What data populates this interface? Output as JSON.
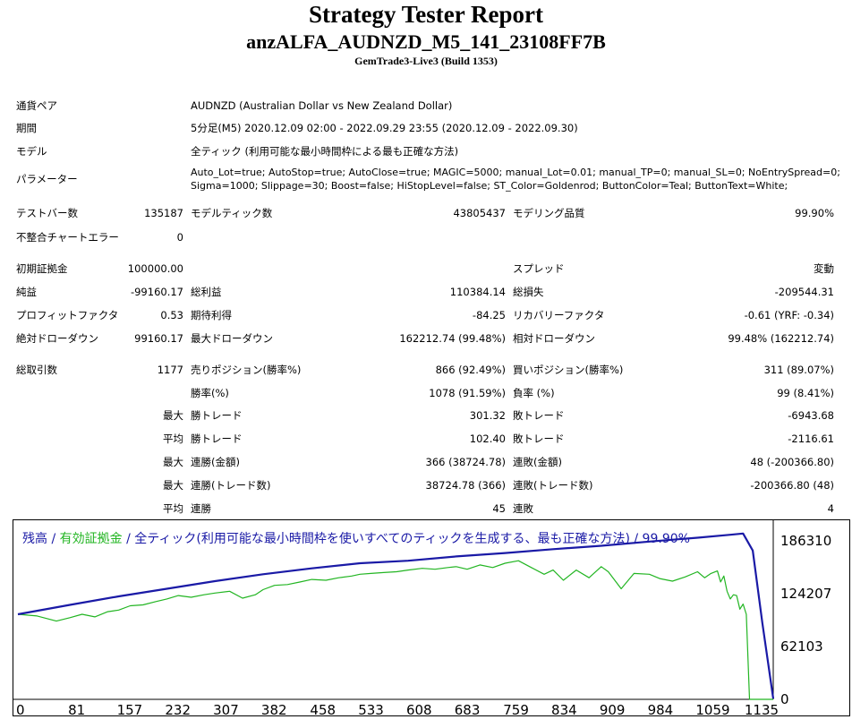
{
  "header": {
    "title": "Strategy Tester Report",
    "ea_name": "anzALFA_AUDNZD_M5_141_23108FF7B",
    "server": "GemTrade3-Live3 (Build 1353)"
  },
  "settings": {
    "symbol_label": "通貨ペア",
    "symbol_value": "AUDNZD (Australian Dollar vs New Zealand Dollar)",
    "period_label": "期間",
    "period_value": "5分足(M5) 2020.12.09 02:00 - 2022.09.29 23:55 (2020.12.09 - 2022.09.30)",
    "model_label": "モデル",
    "model_value": "全ティック (利用可能な最小時間枠による最も正確な方法)",
    "params_label": "パラメーター",
    "params_line1": "Auto_Lot=true; AutoStop=true; AutoClose=true; MAGIC=5000; manual_Lot=0.01; manual_TP=0; manual_SL=0; NoEntrySpread=0;",
    "params_line2": "Sigma=1000; Slippage=30; Boost=false; HiStopLevel=false; ST_Color=Goldenrod; ButtonColor=Teal; ButtonText=White;"
  },
  "test": {
    "bars_label": "テストバー数",
    "bars_value": "135187",
    "ticks_label": "モデルティック数",
    "ticks_value": "43805437",
    "quality_label": "モデリング品質",
    "quality_value": "99.90%",
    "mismatch_label": "不整合チャートエラー",
    "mismatch_value": "0"
  },
  "results": {
    "deposit_label": "初期証拠金",
    "deposit_value": "100000.00",
    "spread_label": "スプレッド",
    "spread_value": "変動",
    "net_label": "純益",
    "net_value": "-99160.17",
    "gross_profit_label": "総利益",
    "gross_profit_value": "110384.14",
    "gross_loss_label": "総損失",
    "gross_loss_value": "-209544.31",
    "pf_label": "プロフィットファクタ",
    "pf_value": "0.53",
    "expected_label": "期待利得",
    "expected_value": "-84.25",
    "recovery_label": "リカバリーファクタ",
    "recovery_value": "-0.61 (YRF: -0.34)",
    "abs_dd_label": "絶対ドローダウン",
    "abs_dd_value": "99160.17",
    "max_dd_label": "最大ドローダウン",
    "max_dd_value": "162212.74 (99.48%)",
    "rel_dd_label": "相対ドローダウン",
    "rel_dd_value": "99.48% (162212.74)"
  },
  "trades": {
    "total_label": "総取引数",
    "total_value": "1177",
    "short_label": "売りポジション(勝率%)",
    "short_value": "866 (92.49%)",
    "long_label": "買いポジション(勝率%)",
    "long_value": "311 (89.07%)",
    "win_label": "勝率(%)",
    "win_value": "1078 (91.59%)",
    "loss_label": "負率 (%)",
    "loss_value": "99 (8.41%)",
    "max_word": "最大",
    "avg_word": "平均",
    "largest_win_label": "勝トレード",
    "largest_win_value": "301.32",
    "largest_loss_label": "敗トレード",
    "largest_loss_value": "-6943.68",
    "avg_win_label": "勝トレード",
    "avg_win_value": "102.40",
    "avg_loss_label": "敗トレード",
    "avg_loss_value": "-2116.61",
    "max_cons_wins_money_label": "連勝(金額)",
    "max_cons_wins_money_value": "366 (38724.78)",
    "max_cons_losses_money_label": "連敗(金額)",
    "max_cons_losses_money_value": "48 (-200366.80)",
    "max_cons_wins_count_label": "連勝(トレード数)",
    "max_cons_wins_count_value": "38724.78 (366)",
    "max_cons_losses_count_label": "連敗(トレード数)",
    "max_cons_losses_count_value": "-200366.80 (48)",
    "avg_cons_wins_label": "連勝",
    "avg_cons_wins_value": "45",
    "avg_cons_losses_label": "連敗",
    "avg_cons_losses_value": "4"
  },
  "chart_data": {
    "type": "line",
    "legend_balance": "残高",
    "legend_sep1": " / ",
    "legend_equity": "有効証拠金",
    "legend_rest": " / 全ティック(利用可能な最小時間枠を使いすべてのティックを生成する、最も正確な方法) / 99.90%",
    "colors": {
      "balance": "#1a1aa6",
      "equity": "#22b522",
      "legend_text": "#1a1aa6"
    },
    "ylim": [
      0,
      200000
    ],
    "y_ticks": [
      0,
      62103,
      124207,
      186310
    ],
    "x_ticks": [
      0,
      81,
      157,
      232,
      307,
      382,
      458,
      533,
      608,
      683,
      759,
      834,
      909,
      984,
      1059,
      1135
    ],
    "xlim": [
      0,
      1177
    ],
    "series": [
      {
        "name": "残高",
        "x": [
          0,
          81,
          157,
          232,
          307,
          382,
          458,
          533,
          608,
          683,
          759,
          834,
          909,
          984,
          1059,
          1110,
          1130,
          1145,
          1160,
          1177
        ],
        "y": [
          100000,
          111000,
          121000,
          130000,
          139000,
          147000,
          154000,
          160000,
          163000,
          168000,
          172000,
          176500,
          180500,
          185500,
          190000,
          193500,
          195000,
          175000,
          90000,
          839.83
        ]
      },
      {
        "name": "有効証拠金",
        "x": [
          0,
          30,
          60,
          81,
          100,
          120,
          140,
          157,
          175,
          195,
          215,
          232,
          250,
          270,
          290,
          307,
          330,
          350,
          370,
          382,
          400,
          420,
          440,
          458,
          480,
          500,
          520,
          533,
          550,
          570,
          590,
          608,
          630,
          650,
          670,
          683,
          700,
          720,
          740,
          759,
          780,
          800,
          820,
          834,
          850,
          870,
          890,
          909,
          920,
          940,
          960,
          984,
          1000,
          1020,
          1040,
          1059,
          1070,
          1080,
          1090,
          1095,
          1100,
          1105,
          1110,
          1115,
          1120,
          1125,
          1130,
          1135,
          1140,
          1160,
          1177
        ],
        "y": [
          100000,
          98000,
          92000,
          96000,
          100000,
          97000,
          103000,
          105000,
          110000,
          111000,
          115000,
          118000,
          122000,
          120000,
          123000,
          125000,
          127000,
          119000,
          123000,
          129000,
          134000,
          135000,
          138000,
          141000,
          140000,
          143000,
          145000,
          147000,
          148000,
          149000,
          150000,
          152000,
          154000,
          153000,
          155000,
          156000,
          153000,
          158000,
          155000,
          160000,
          163000,
          155000,
          147000,
          152000,
          140000,
          152000,
          143000,
          156000,
          150000,
          130000,
          148000,
          147000,
          142000,
          139000,
          144000,
          150000,
          143000,
          148000,
          151000,
          138000,
          145000,
          127000,
          118000,
          123000,
          122000,
          106000,
          112000,
          100000,
          0,
          0,
          0
        ]
      }
    ]
  }
}
